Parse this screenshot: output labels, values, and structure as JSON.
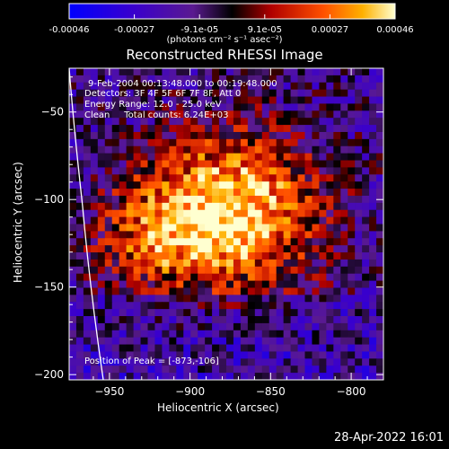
{
  "colorbar": {
    "ticks": [
      "-0.00046",
      "-0.00027",
      "-9.1e-05",
      "9.1e-05",
      "0.00027",
      "0.00046"
    ],
    "unit": "(photons cm⁻² s⁻¹ asec⁻²)",
    "range": [
      -0.00046,
      0.00046
    ]
  },
  "chart_data": {
    "type": "heatmap",
    "title": "Reconstructed RHESSI Image",
    "xlabel": "Heliocentric X (arcsec)",
    "ylabel": "Heliocentric Y (arcsec)",
    "xlim": [
      -975,
      -780
    ],
    "ylim": [
      -203,
      -25
    ],
    "xticks": [
      -950,
      -900,
      -850,
      -800
    ],
    "yticks": [
      -50,
      -100,
      -150,
      -200
    ],
    "peak": {
      "x": -873,
      "y": -106
    },
    "annotations": {
      "time": "9-Feb-2004 00:13:48.000 to 00:19:48.000",
      "detectors": "Detectors: 3F 4F 5F 6F 7F 8F, Att 0",
      "energy": "Energy Range: 12.0 - 25.0 keV",
      "clean": "Clean     Total counts: 6.24E+03",
      "peak_text": "Position of Peak = [-873,-106]"
    }
  },
  "footer": {
    "date": "28-Apr-2022 16:01"
  }
}
